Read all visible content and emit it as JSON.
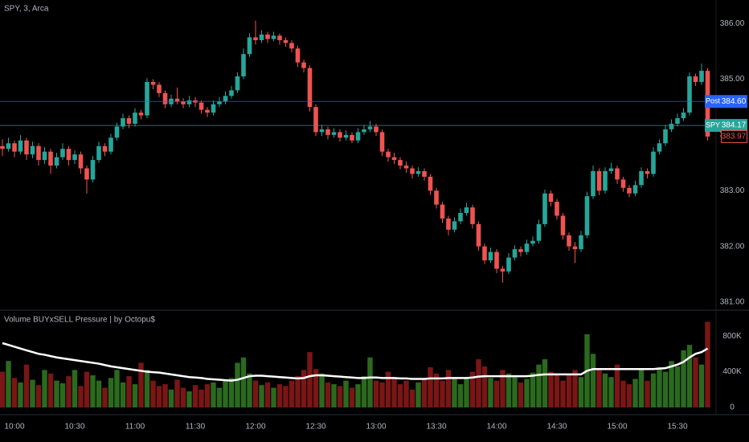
{
  "chart_data": [
    {
      "type": "candlestick",
      "title": "SPY, 3, Arca",
      "categories": [
        null,
        null,
        "10:00",
        null,
        null,
        null,
        null,
        null,
        null,
        null,
        null,
        null,
        "10:30",
        null,
        null,
        null,
        null,
        null,
        null,
        null,
        null,
        null,
        "11:00",
        null,
        null,
        null,
        null,
        null,
        null,
        null,
        null,
        null,
        "11:30",
        null,
        null,
        null,
        null,
        null,
        null,
        null,
        null,
        null,
        "12:00",
        null,
        null,
        null,
        null,
        null,
        null,
        null,
        null,
        null,
        "12:30",
        null,
        null,
        null,
        null,
        null,
        null,
        null,
        null,
        null,
        "13:00",
        null,
        null,
        null,
        null,
        null,
        null,
        null,
        null,
        null,
        "13:30",
        null,
        null,
        null,
        null,
        null,
        null,
        null,
        null,
        null,
        "14:00",
        null,
        null,
        null,
        null,
        null,
        null,
        null,
        null,
        null,
        "14:30",
        null,
        null,
        null,
        null,
        null,
        null,
        null,
        null,
        null,
        "15:00",
        null,
        null,
        null,
        null,
        null,
        null,
        null,
        null,
        null,
        "15:30",
        null,
        null,
        null,
        null,
        null
      ],
      "open": [
        383.8,
        383.75,
        383.85,
        383.7,
        383.9,
        383.65,
        383.8,
        383.55,
        383.7,
        383.45,
        383.6,
        383.75,
        383.55,
        383.65,
        383.4,
        383.2,
        383.55,
        383.8,
        383.7,
        383.95,
        384.15,
        384.3,
        384.2,
        384.4,
        384.35,
        384.95,
        384.9,
        384.75,
        384.55,
        384.65,
        384.6,
        384.55,
        384.62,
        384.58,
        384.45,
        384.4,
        384.55,
        384.6,
        384.7,
        384.8,
        385.05,
        385.45,
        385.75,
        385.7,
        385.8,
        385.72,
        385.78,
        385.7,
        385.65,
        385.55,
        385.3,
        385.2,
        384.5,
        384.05,
        384.1,
        384.0,
        384.05,
        383.95,
        384.0,
        383.9,
        384.05,
        384.1,
        384.15,
        384.05,
        383.7,
        383.6,
        383.55,
        383.45,
        383.4,
        383.3,
        383.35,
        383.25,
        383.0,
        382.75,
        382.5,
        382.3,
        382.45,
        382.6,
        382.7,
        382.4,
        382.0,
        381.75,
        381.9,
        381.6,
        381.55,
        381.8,
        381.95,
        381.9,
        382.05,
        382.1,
        382.4,
        382.95,
        382.8,
        382.55,
        382.2,
        382.0,
        381.95,
        382.2,
        382.9,
        383.35,
        383.0,
        383.35,
        383.4,
        383.2,
        383.05,
        382.95,
        383.1,
        383.35,
        383.3,
        383.7,
        383.85,
        384.1,
        384.2,
        384.3,
        384.4,
        385.05,
        384.95,
        385.15
      ],
      "high": [
        383.92,
        383.95,
        383.9,
        384.0,
        383.95,
        383.88,
        383.85,
        383.78,
        383.75,
        383.68,
        383.85,
        383.8,
        383.72,
        383.7,
        383.45,
        383.62,
        383.88,
        383.85,
        384.02,
        384.22,
        384.38,
        384.35,
        384.48,
        384.45,
        385.02,
        385.0,
        384.95,
        384.8,
        384.72,
        384.85,
        384.66,
        384.7,
        384.68,
        384.62,
        384.5,
        384.62,
        384.68,
        384.78,
        384.88,
        385.12,
        385.55,
        385.82,
        386.05,
        385.88,
        385.85,
        385.85,
        385.82,
        385.75,
        385.7,
        385.6,
        385.35,
        385.25,
        384.55,
        384.18,
        384.15,
        384.12,
        384.1,
        384.08,
        384.05,
        384.12,
        384.18,
        384.25,
        384.2,
        384.1,
        383.75,
        383.68,
        383.6,
        383.52,
        383.45,
        383.42,
        383.4,
        383.3,
        383.05,
        382.8,
        382.55,
        382.52,
        382.68,
        382.78,
        382.75,
        382.45,
        382.05,
        381.98,
        381.95,
        381.65,
        381.88,
        382.02,
        382.0,
        382.12,
        382.18,
        382.48,
        383.02,
        383.0,
        382.85,
        382.6,
        382.25,
        382.08,
        382.28,
        382.98,
        383.45,
        383.4,
        383.42,
        383.5,
        383.45,
        383.25,
        383.1,
        383.18,
        383.42,
        383.4,
        383.78,
        383.92,
        384.18,
        384.28,
        384.38,
        384.48,
        385.12,
        385.1,
        385.28,
        385.2
      ],
      "low": [
        383.62,
        383.7,
        383.6,
        383.65,
        383.55,
        383.58,
        383.45,
        383.48,
        383.3,
        383.4,
        383.55,
        383.45,
        383.48,
        383.3,
        382.95,
        383.15,
        383.5,
        383.62,
        383.65,
        383.9,
        384.1,
        384.12,
        384.15,
        384.28,
        384.3,
        384.82,
        384.68,
        384.48,
        384.5,
        384.55,
        384.48,
        384.5,
        384.5,
        384.38,
        384.32,
        384.35,
        384.5,
        384.55,
        384.65,
        384.75,
        385.0,
        385.4,
        385.62,
        385.65,
        385.65,
        385.68,
        385.62,
        385.58,
        385.48,
        385.22,
        385.12,
        384.42,
        383.98,
        383.98,
        383.92,
        383.95,
        383.88,
        383.9,
        383.85,
        383.85,
        384.0,
        384.05,
        383.98,
        383.62,
        383.52,
        383.48,
        383.38,
        383.32,
        383.22,
        383.25,
        383.18,
        382.92,
        382.68,
        382.42,
        382.2,
        382.25,
        382.4,
        382.55,
        382.32,
        381.92,
        381.68,
        381.7,
        381.52,
        381.35,
        381.5,
        381.75,
        381.82,
        381.85,
        382.0,
        382.05,
        382.35,
        382.72,
        382.48,
        382.12,
        381.92,
        381.7,
        381.9,
        382.15,
        382.85,
        382.92,
        382.95,
        383.3,
        383.12,
        382.98,
        382.88,
        382.9,
        383.05,
        383.22,
        383.25,
        383.65,
        383.8,
        384.05,
        384.15,
        384.25,
        384.35,
        384.88,
        384.9,
        383.9
      ],
      "close": [
        383.75,
        383.85,
        383.7,
        383.9,
        383.65,
        383.8,
        383.55,
        383.7,
        383.45,
        383.6,
        383.75,
        383.55,
        383.65,
        383.4,
        383.2,
        383.55,
        383.8,
        383.7,
        383.95,
        384.15,
        384.3,
        384.2,
        384.4,
        384.35,
        384.95,
        384.9,
        384.75,
        384.55,
        384.65,
        384.6,
        384.55,
        384.62,
        384.58,
        384.45,
        384.4,
        384.55,
        384.6,
        384.7,
        384.8,
        385.05,
        385.45,
        385.75,
        385.7,
        385.8,
        385.72,
        385.78,
        385.7,
        385.65,
        385.55,
        385.3,
        385.2,
        384.5,
        384.05,
        384.1,
        384.0,
        384.05,
        383.95,
        384.0,
        383.9,
        384.05,
        384.1,
        384.15,
        384.05,
        383.7,
        383.6,
        383.55,
        383.45,
        383.4,
        383.3,
        383.35,
        383.25,
        383.0,
        382.75,
        382.5,
        382.3,
        382.45,
        382.6,
        382.7,
        382.4,
        382.0,
        381.75,
        381.9,
        381.6,
        381.55,
        381.8,
        381.95,
        381.9,
        382.05,
        382.1,
        382.4,
        382.95,
        382.8,
        382.55,
        382.2,
        382.0,
        381.95,
        382.2,
        382.9,
        383.35,
        383.0,
        383.35,
        383.4,
        383.2,
        383.05,
        382.95,
        383.1,
        383.35,
        383.3,
        383.7,
        383.85,
        384.1,
        384.2,
        384.3,
        384.4,
        385.05,
        384.95,
        385.15,
        383.97
      ],
      "up_color": "#26a69a",
      "down_color": "#ef5350",
      "ylim": [
        380.87,
        386.42
      ],
      "yticks": [
        {
          "value": 381,
          "label": "381.00"
        },
        {
          "value": 382,
          "label": "382.00"
        },
        {
          "value": 383,
          "label": "383.00"
        },
        {
          "value": 384,
          "label": "384.00"
        },
        {
          "value": 385,
          "label": "385.00"
        },
        {
          "value": 386,
          "label": "386.00"
        }
      ],
      "price_lines": [
        {
          "name": "Post",
          "value": 384.6,
          "label": "384.60",
          "color": "#2962ff"
        },
        {
          "name": "SPY",
          "value": 384.17,
          "label": "384.17",
          "color": "#26a69a"
        }
      ],
      "last_price": {
        "value": 383.97,
        "label": "383.97",
        "color": "#ef5350"
      }
    },
    {
      "type": "bar",
      "title": "Volume BUYxSELL Pressure | by Octopu$",
      "values": [
        400000,
        520000,
        330000,
        280000,
        480000,
        310000,
        250000,
        420000,
        380000,
        300000,
        270000,
        350000,
        420000,
        240000,
        400000,
        360000,
        300000,
        220000,
        330000,
        420000,
        280000,
        350000,
        260000,
        500000,
        420000,
        300000,
        240000,
        260000,
        200000,
        310000,
        220000,
        180000,
        250000,
        200000,
        260000,
        280000,
        220000,
        300000,
        330000,
        500000,
        560000,
        380000,
        300000,
        250000,
        280000,
        220000,
        260000,
        240000,
        300000,
        350000,
        420000,
        620000,
        430000,
        380000,
        280000,
        260000,
        240000,
        300000,
        220000,
        260000,
        350000,
        560000,
        300000,
        280000,
        400000,
        320000,
        260000,
        300000,
        200000,
        280000,
        330000,
        450000,
        380000,
        300000,
        420000,
        320000,
        260000,
        340000,
        400000,
        540000,
        460000,
        330000,
        300000,
        420000,
        380000,
        340000,
        280000,
        320000,
        390000,
        480000,
        540000,
        400000,
        380000,
        300000,
        360000,
        420000,
        340000,
        820000,
        600000,
        420000,
        380000,
        340000,
        480000,
        300000,
        260000,
        320000,
        420000,
        300000,
        380000,
        450000,
        400000,
        520000,
        460000,
        640000,
        700000,
        560000,
        480000,
        960000
      ],
      "up_color": "#2b6a1e",
      "down_color": "#7a1616",
      "line": {
        "color": "#ffffff",
        "values": [
          720000,
          700000,
          680000,
          660000,
          640000,
          620000,
          600000,
          590000,
          575000,
          560000,
          550000,
          540000,
          530000,
          520000,
          510000,
          500000,
          490000,
          475000,
          460000,
          450000,
          440000,
          430000,
          420000,
          410000,
          400000,
          395000,
          390000,
          380000,
          370000,
          360000,
          350000,
          340000,
          335000,
          330000,
          320000,
          315000,
          310000,
          305000,
          300000,
          310000,
          330000,
          350000,
          355000,
          355000,
          350000,
          345000,
          340000,
          335000,
          330000,
          325000,
          330000,
          350000,
          360000,
          360000,
          355000,
          350000,
          345000,
          340000,
          335000,
          330000,
          330000,
          335000,
          335000,
          330000,
          330000,
          330000,
          325000,
          325000,
          320000,
          320000,
          320000,
          325000,
          325000,
          325000,
          330000,
          330000,
          330000,
          330000,
          335000,
          345000,
          350000,
          350000,
          350000,
          350000,
          350000,
          350000,
          350000,
          350000,
          355000,
          365000,
          370000,
          370000,
          370000,
          370000,
          370000,
          370000,
          370000,
          410000,
          430000,
          430000,
          430000,
          430000,
          430000,
          430000,
          430000,
          430000,
          430000,
          430000,
          430000,
          435000,
          440000,
          460000,
          480000,
          510000,
          560000,
          600000,
          620000,
          660000
        ]
      },
      "ylim": [
        -72000,
        1080000
      ],
      "yticks": [
        0,
        {
          "value": 400000,
          "label": "400K"
        },
        {
          "value": 800000,
          "label": "800K"
        }
      ]
    }
  ]
}
